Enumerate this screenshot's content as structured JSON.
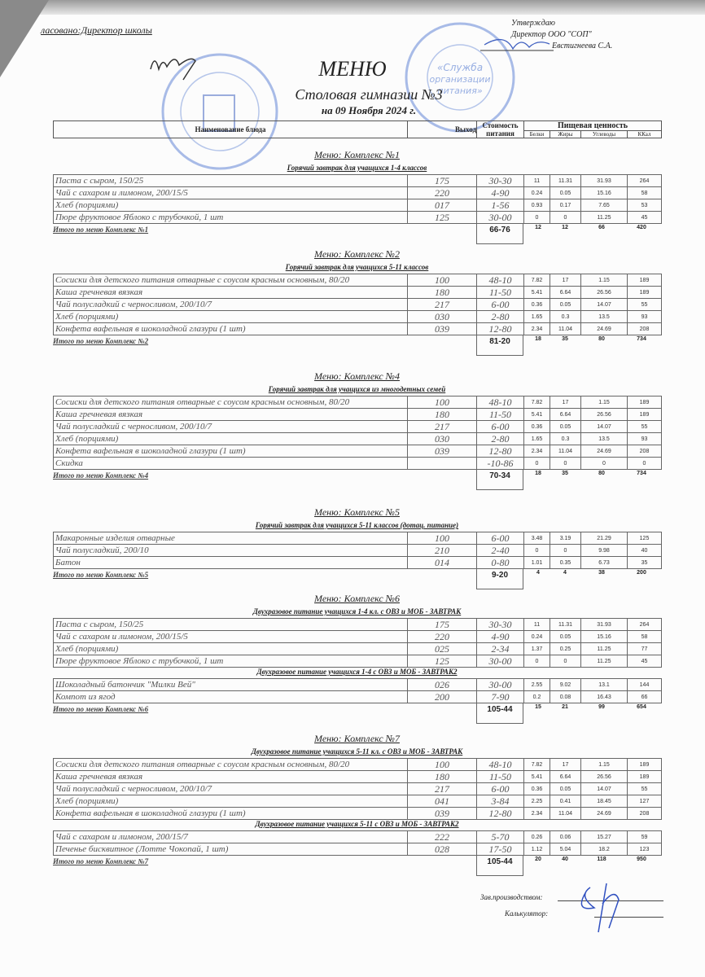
{
  "header": {
    "agreed": "ласовано:Директор школы",
    "approve_1": "Утверждаю",
    "approve_2": "Директор ООО \"СОП\"",
    "approve_3": "Евстигнеева С.А.",
    "title": "МЕНЮ",
    "subtitle": "Столовая гимназии №3",
    "date": "на 09 Ноября 2024 г."
  },
  "stamp_text": "«Служба организации питания»",
  "columns": {
    "name": "Наименование блюда",
    "output": "Выход",
    "cost": "Стоимость питания",
    "nutrition": "Пищевая ценность",
    "protein": "Белки",
    "fat": "Жиры",
    "carbs": "Углеводы",
    "kcal": "ККал"
  },
  "sections": [
    {
      "title": "Меню: Комплекс №1",
      "groups": [
        {
          "subtitle": "Горячий завтрак для учащихся 1-4 классов",
          "rows": [
            [
              "Паста с сыром, 150/25",
              "175",
              "30-30",
              "11",
              "11.31",
              "31.93",
              "264"
            ],
            [
              "Чай с сахаром и лимоном, 200/15/5",
              "220",
              "4-90",
              "0.24",
              "0.05",
              "15.16",
              "58"
            ],
            [
              "Хлеб (порциями)",
              "017",
              "1-56",
              "0.93",
              "0.17",
              "7.65",
              "53"
            ],
            [
              "Пюре фруктовое Яблоко с трубочкой, 1 шт",
              "125",
              "30-00",
              "0",
              "0",
              "11.25",
              "45"
            ]
          ]
        }
      ],
      "total": {
        "label": "Итого по меню Комплекс №1",
        "cost": "66-76",
        "values": [
          "12",
          "12",
          "66",
          "420"
        ]
      }
    },
    {
      "title": "Меню: Комплекс №2",
      "groups": [
        {
          "subtitle": "Горячий завтрак для учащихся 5-11 классов",
          "rows": [
            [
              "Сосиски для детского питания отварные с соусом красным основным, 80/20",
              "100",
              "48-10",
              "7.82",
              "17",
              "1.15",
              "189"
            ],
            [
              "Каша гречневая вязкая",
              "180",
              "11-50",
              "5.41",
              "6.64",
              "26.56",
              "189"
            ],
            [
              "Чай полусладкий с черносливом, 200/10/7",
              "217",
              "6-00",
              "0.36",
              "0.05",
              "14.07",
              "55"
            ],
            [
              "Хлеб (порциями)",
              "030",
              "2-80",
              "1.65",
              "0.3",
              "13.5",
              "93"
            ],
            [
              "Конфета вафельная в шоколадной глазури (1 шт)",
              "039",
              "12-80",
              "2.34",
              "11.04",
              "24.69",
              "208"
            ]
          ]
        }
      ],
      "total": {
        "label": "Итого по меню Комплекс №2",
        "cost": "81-20",
        "values": [
          "18",
          "35",
          "80",
          "734"
        ]
      }
    },
    {
      "title": "Меню: Комплекс №4",
      "groups": [
        {
          "subtitle": "Горячий завтрак для учащихся из многодетных семей",
          "rows": [
            [
              "Сосиски для детского питания отварные с соусом красным основным, 80/20",
              "100",
              "48-10",
              "7.82",
              "17",
              "1.15",
              "189"
            ],
            [
              "Каша гречневая вязкая",
              "180",
              "11-50",
              "5.41",
              "6.64",
              "26.56",
              "189"
            ],
            [
              "Чай полусладкий с черносливом, 200/10/7",
              "217",
              "6-00",
              "0.36",
              "0.05",
              "14.07",
              "55"
            ],
            [
              "Хлеб (порциями)",
              "030",
              "2-80",
              "1.65",
              "0.3",
              "13.5",
              "93"
            ],
            [
              "Конфета вафельная в шоколадной глазури (1 шт)",
              "039",
              "12-80",
              "2.34",
              "11.04",
              "24.69",
              "208"
            ],
            [
              "Скидка",
              "",
              "-10-86",
              "0",
              "0",
              "0",
              "0"
            ]
          ]
        }
      ],
      "total": {
        "label": "Итого по меню Комплекс №4",
        "cost": "70-34",
        "values": [
          "18",
          "35",
          "80",
          "734"
        ]
      }
    },
    {
      "title": "Меню: Комплекс №5",
      "groups": [
        {
          "subtitle": "Горячий завтрак для учащихся 5-11 классов (дотац. питание)",
          "rows": [
            [
              "Макаронные изделия отварные",
              "100",
              "6-00",
              "3.48",
              "3.19",
              "21.29",
              "125"
            ],
            [
              "Чай полусладкий, 200/10",
              "210",
              "2-40",
              "0",
              "0",
              "9.98",
              "40"
            ],
            [
              "Батон",
              "014",
              "0-80",
              "1.01",
              "0.35",
              "6.73",
              "35"
            ]
          ]
        }
      ],
      "total": {
        "label": "Итого по меню Комплекс №5",
        "cost": "9-20",
        "values": [
          "4",
          "4",
          "38",
          "200"
        ]
      }
    },
    {
      "title": "Меню: Комплекс №6",
      "groups": [
        {
          "subtitle": "Двухразовое питание учащихся 1-4 кл. с ОВЗ и МОБ - ЗАВТРАК",
          "rows": [
            [
              "Паста с сыром, 150/25",
              "175",
              "30-30",
              "11",
              "11.31",
              "31.93",
              "264"
            ],
            [
              "Чай с сахаром и лимоном, 200/15/5",
              "220",
              "4-90",
              "0.24",
              "0.05",
              "15.16",
              "58"
            ],
            [
              "Хлеб (порциями)",
              "025",
              "2-34",
              "1.37",
              "0.25",
              "11.25",
              "77"
            ],
            [
              "Пюре фруктовое Яблоко с трубочкой, 1 шт",
              "125",
              "30-00",
              "0",
              "0",
              "11.25",
              "45"
            ]
          ]
        },
        {
          "subtitle": "Двухразовое питание учащихся 1-4 с ОВЗ и МОБ - ЗАВТРАК2",
          "rows": [
            [
              "Шоколадный батончик \"Милки Вей\"",
              "026",
              "30-00",
              "2.55",
              "9.02",
              "13.1",
              "144"
            ],
            [
              "Компот из ягод",
              "200",
              "7-90",
              "0.2",
              "0.08",
              "16.43",
              "66"
            ]
          ]
        }
      ],
      "total": {
        "label": "Итого по меню Комплекс №6",
        "cost": "105-44",
        "values": [
          "15",
          "21",
          "99",
          "654"
        ]
      }
    },
    {
      "title": "Меню: Комплекс №7",
      "groups": [
        {
          "subtitle": "Двухразовое питание учащихся 5-11 кл. с ОВЗ и МОБ - ЗАВТРАК",
          "rows": [
            [
              "Сосиски для детского питания отварные с соусом красным основным, 80/20",
              "100",
              "48-10",
              "7.82",
              "17",
              "1.15",
              "189"
            ],
            [
              "Каша гречневая вязкая",
              "180",
              "11-50",
              "5.41",
              "6.64",
              "26.56",
              "189"
            ],
            [
              "Чай полусладкий с черносливом, 200/10/7",
              "217",
              "6-00",
              "0.36",
              "0.05",
              "14.07",
              "55"
            ],
            [
              "Хлеб (порциями)",
              "041",
              "3-84",
              "2.25",
              "0.41",
              "18.45",
              "127"
            ],
            [
              "Конфета вафельная в шоколадной глазури (1 шт)",
              "039",
              "12-80",
              "2.34",
              "11.04",
              "24.69",
              "208"
            ]
          ]
        },
        {
          "subtitle": "Двухразовое питание учащихся 5-11 с ОВЗ и МОБ - ЗАВТРАК2",
          "rows": [
            [
              "Чай с сахаром и лимоном, 200/15/7",
              "222",
              "5-70",
              "0.26",
              "0.06",
              "15.27",
              "59"
            ],
            [
              "Печенье бисквитное (Лотте Чокопай, 1 шт)",
              "028",
              "17-50",
              "1.12",
              "5.04",
              "18.2",
              "123"
            ]
          ]
        }
      ],
      "total": {
        "label": "Итого по меню Комплекс №7",
        "cost": "105-44",
        "values": [
          "20",
          "40",
          "118",
          "950"
        ]
      }
    }
  ],
  "footer": {
    "production": "Зав.производством:",
    "calculator": "Калькулятор:"
  }
}
